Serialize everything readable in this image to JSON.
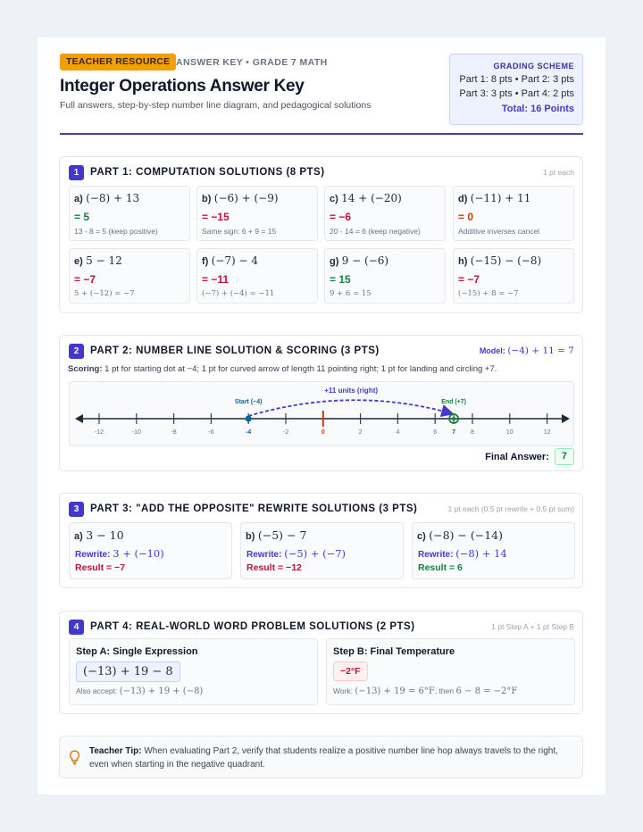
{
  "header": {
    "badge": "TEACHER RESOURCE",
    "subhead": "ANSWER KEY • GRADE 7 MATH",
    "title": "Integer Operations Answer Key",
    "description": "Full answers, step-by-step number line diagram, and pedagogical solutions",
    "grading": {
      "title": "GRADING SCHEME",
      "line1": "Part 1: 8 pts • Part 2: 3 pts",
      "line2": "Part 3: 3 pts • Part 4: 2 pts",
      "total": "Total: 16 Points"
    }
  },
  "part1": {
    "num": "1",
    "title": "PART 1: COMPUTATION SOLUTIONS (8 PTS)",
    "note": "1 pt each",
    "items": [
      {
        "label": "a)",
        "expr": "(−8) + 13",
        "answer": "= 5",
        "work": "13 - 8 = 5 (keep positive)"
      },
      {
        "label": "b)",
        "expr": "(−6) + (−9)",
        "answer": "= −15",
        "work": "Same sign: 6 + 9 = 15"
      },
      {
        "label": "c)",
        "expr": "14 + (−20)",
        "answer": "= −6",
        "work": "20 - 14 = 6 (keep negative)"
      },
      {
        "label": "d)",
        "expr": "(−11) + 11",
        "answer": "= 0",
        "work": "Additive inverses cancel"
      },
      {
        "label": "e)",
        "expr": "5 − 12",
        "answer": "= −7",
        "work": "5 + (−12) = −7"
      },
      {
        "label": "f)",
        "expr": "(−7) − 4",
        "answer": "= −11",
        "work": "(−7) + (−4) = −11"
      },
      {
        "label": "g)",
        "expr": "9 − (−6)",
        "answer": "= 15",
        "work": "9 + 6 = 15"
      },
      {
        "label": "h)",
        "expr": "(−15) − (−8)",
        "answer": "= −7",
        "work": "(−15) + 8 = −7"
      }
    ]
  },
  "part2": {
    "num": "2",
    "title": "PART 2: NUMBER LINE SOLUTION & SCORING (3 PTS)",
    "model_label": "Model:",
    "model_expr": "(−4) + 11 = 7",
    "scoring_label": "Scoring:",
    "scoring_text": "1 pt for starting dot at −4; 1 pt for curved arrow of length 11 pointing right; 1 pt for landing and circling +7.",
    "arrow_label": "+11 units (right)",
    "start_label": "Start (−4)",
    "end_label": "End (+7)",
    "start_value": -4,
    "end_value": 7,
    "ticks": [
      -12,
      -10,
      -8,
      -6,
      -4,
      -2,
      0,
      2,
      4,
      6,
      7,
      8,
      10,
      12
    ],
    "tick_labels": [
      "-12",
      "-10",
      "-8",
      "-6",
      "-4",
      "-2",
      "0",
      "2",
      "4",
      "6",
      "7",
      "8",
      "10",
      "12"
    ],
    "final_label": "Final Answer:",
    "final_value": "7"
  },
  "part3": {
    "num": "3",
    "title": "PART 3: \"ADD THE OPPOSITE\" REWRITE SOLUTIONS (3 PTS)",
    "note": "1 pt each (0.5 pt rewrite + 0.5 pt sum)",
    "rewrite_label": "Rewrite:",
    "items": [
      {
        "label": "a)",
        "expr": "3 − 10",
        "rewrite": "3 + (−10)",
        "result": "Result = −7"
      },
      {
        "label": "b)",
        "expr": "(−5) − 7",
        "rewrite": "(−5) + (−7)",
        "result": "Result = −12"
      },
      {
        "label": "c)",
        "expr": "(−8) − (−14)",
        "rewrite": "(−8) + 14",
        "result": "Result = 6"
      }
    ]
  },
  "part4": {
    "num": "4",
    "title": "PART 4: REAL-WORLD WORD PROBLEM SOLUTIONS (2 PTS)",
    "note": "1 pt Step A + 1 pt Step B",
    "stepA": {
      "title": "Step A: Single Expression",
      "expr": "(−13) + 19 − 8",
      "accept_label": "Also accept:",
      "accept_expr": "(−13) + 19 + (−8)"
    },
    "stepB": {
      "title": "Step B: Final Temperature",
      "value": "−2°F",
      "work_label": "Work:",
      "work_expr1": "(−13) + 19 = 6°F",
      "work_mid": ", then",
      "work_expr2": "6 − 8 = −2°F"
    }
  },
  "tip": {
    "label": "Teacher Tip:",
    "text": "When evaluating Part 2, verify that students realize a positive number line hop always travels to the right, even when starting in the negative quadrant."
  },
  "colors": {
    "accent": "#4338ca",
    "badge": "#f59e0b",
    "positive": "#15803d",
    "negative": "#be123c",
    "zero": "#c2410c"
  }
}
